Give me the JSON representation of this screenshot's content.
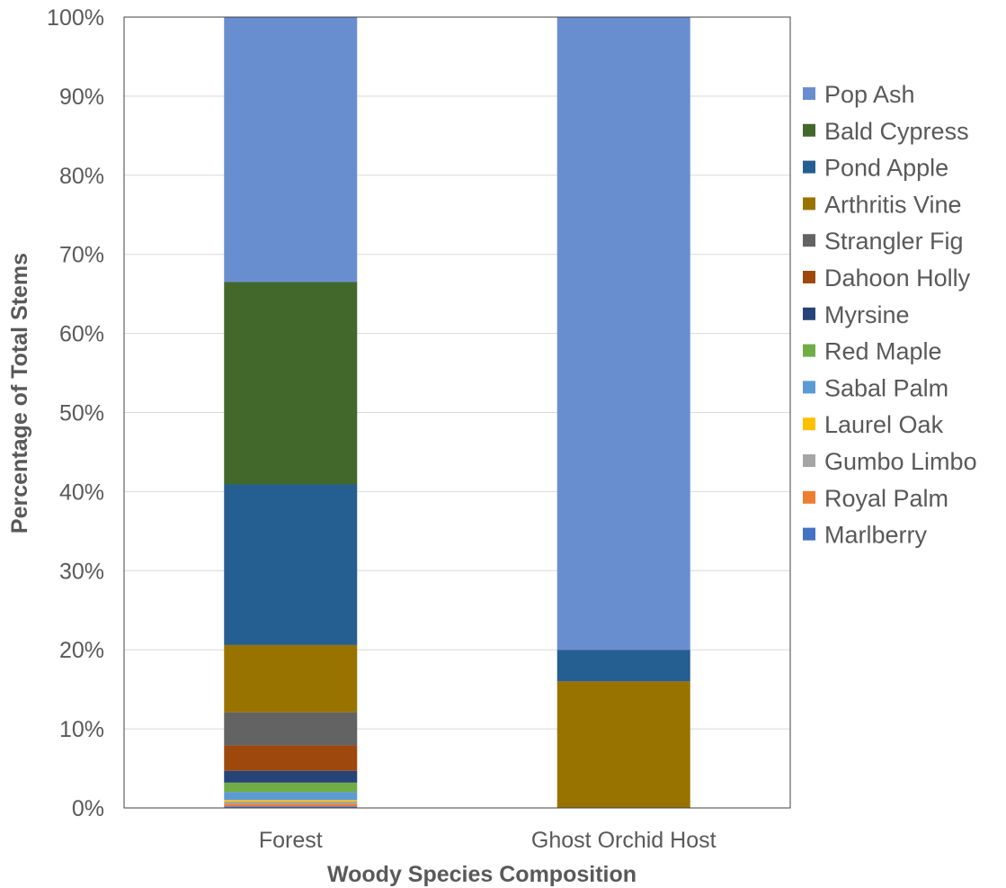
{
  "chart_data": {
    "type": "bar",
    "stacked": true,
    "percent_stacked": true,
    "title": "",
    "xlabel": "Woody Species Composition",
    "ylabel": "Percentage of Total Stems",
    "ylim": [
      0,
      100
    ],
    "y_ticks": [
      "0%",
      "10%",
      "20%",
      "30%",
      "40%",
      "50%",
      "60%",
      "70%",
      "80%",
      "90%",
      "100%"
    ],
    "grid": true,
    "legend_position": "right",
    "categories": [
      "Forest",
      "Ghost Orchid Host"
    ],
    "series": [
      {
        "name": "Marlberry",
        "color": "#4472c4",
        "values": [
          0.2,
          0
        ]
      },
      {
        "name": "Royal Palm",
        "color": "#ed7d31",
        "values": [
          0.3,
          0
        ]
      },
      {
        "name": "Gumbo Limbo",
        "color": "#a5a5a5",
        "values": [
          0.3,
          0
        ]
      },
      {
        "name": "Laurel Oak",
        "color": "#ffc000",
        "values": [
          0.2,
          0
        ]
      },
      {
        "name": "Sabal Palm",
        "color": "#5b9bd5",
        "values": [
          1.0,
          0
        ]
      },
      {
        "name": "Red Maple",
        "color": "#70ad47",
        "values": [
          1.2,
          0
        ]
      },
      {
        "name": "Myrsine",
        "color": "#264478",
        "values": [
          1.5,
          0
        ]
      },
      {
        "name": "Dahoon Holly",
        "color": "#9e480e",
        "values": [
          3.2,
          0
        ]
      },
      {
        "name": "Strangler Fig",
        "color": "#636363",
        "values": [
          4.2,
          0
        ]
      },
      {
        "name": "Arthritis Vine",
        "color": "#997300",
        "values": [
          8.5,
          16
        ]
      },
      {
        "name": "Pond Apple",
        "color": "#255e91",
        "values": [
          20.3,
          4
        ]
      },
      {
        "name": "Bald Cypress",
        "color": "#43682b",
        "values": [
          25.6,
          0
        ]
      },
      {
        "name": "Pop Ash",
        "color": "#698ed0",
        "values": [
          33.5,
          80
        ]
      }
    ]
  }
}
